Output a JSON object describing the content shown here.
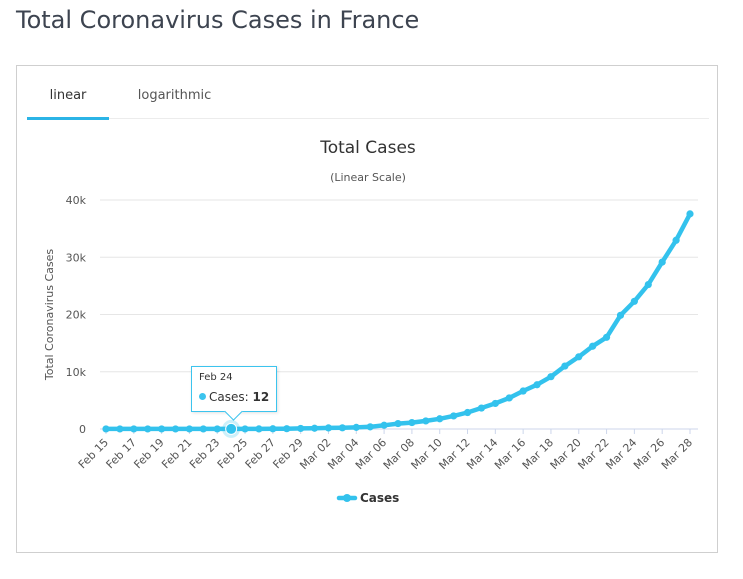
{
  "page_title": "Total Coronavirus Cases in France",
  "tabs": [
    {
      "label": "linear",
      "active": true
    },
    {
      "label": "logarithmic",
      "active": false
    }
  ],
  "colors": {
    "series": "#33c2ed",
    "tab_underline": "#2bb4e6"
  },
  "tooltip": {
    "date": "Feb 24",
    "series": "Cases",
    "separator": ":",
    "value": "12"
  },
  "chart_data": {
    "type": "line",
    "title": "Total Cases",
    "subtitle": "(Linear Scale)",
    "ylabel": "Total Coronavirus Cases",
    "xlabel": "",
    "ylim": [
      0,
      40000
    ],
    "yticks": [
      0,
      10000,
      20000,
      30000,
      40000
    ],
    "ytick_labels": [
      "0",
      "10k",
      "20k",
      "30k",
      "40k"
    ],
    "xtick_labels": [
      "Feb 15",
      "Feb 17",
      "Feb 19",
      "Feb 21",
      "Feb 23",
      "Feb 25",
      "Feb 27",
      "Feb 29",
      "Mar 02",
      "Mar 04",
      "Mar 06",
      "Mar 08",
      "Mar 10",
      "Mar 12",
      "Mar 14",
      "Mar 16",
      "Mar 18",
      "Mar 20",
      "Mar 22",
      "Mar 24",
      "Mar 26",
      "Mar 28"
    ],
    "x": [
      "Feb 15",
      "Feb 16",
      "Feb 17",
      "Feb 18",
      "Feb 19",
      "Feb 20",
      "Feb 21",
      "Feb 22",
      "Feb 23",
      "Feb 24",
      "Feb 25",
      "Feb 26",
      "Feb 27",
      "Feb 28",
      "Feb 29",
      "Mar 01",
      "Mar 02",
      "Mar 03",
      "Mar 04",
      "Mar 05",
      "Mar 06",
      "Mar 07",
      "Mar 08",
      "Mar 09",
      "Mar 10",
      "Mar 11",
      "Mar 12",
      "Mar 13",
      "Mar 14",
      "Mar 15",
      "Mar 16",
      "Mar 17",
      "Mar 18",
      "Mar 19",
      "Mar 20",
      "Mar 21",
      "Mar 22",
      "Mar 23",
      "Mar 24",
      "Mar 25",
      "Mar 26",
      "Mar 27",
      "Mar 28"
    ],
    "series": [
      {
        "name": "Cases",
        "values": [
          12,
          12,
          12,
          12,
          12,
          12,
          12,
          12,
          12,
          12,
          14,
          18,
          38,
          57,
          100,
          130,
          191,
          204,
          285,
          377,
          653,
          949,
          1126,
          1412,
          1784,
          2281,
          2876,
          3661,
          4469,
          5423,
          6633,
          7730,
          9134,
          10995,
          12612,
          14459,
          16018,
          19856,
          22304,
          25233,
          29155,
          32964,
          37575
        ]
      }
    ],
    "grid": true,
    "legend": "bottom-center"
  }
}
